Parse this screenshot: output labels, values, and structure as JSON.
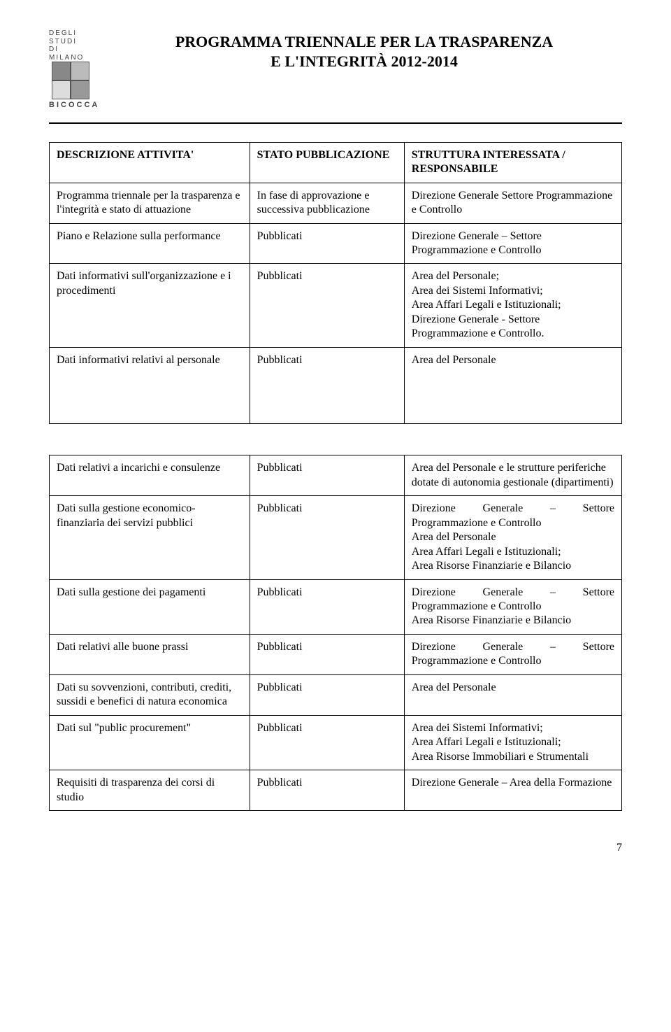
{
  "header": {
    "logo_lines": [
      "DEGLI STUDI",
      "DI MILANO"
    ],
    "logo_brand": "BICOCCA",
    "title_line1": "PROGRAMMA TRIENNALE PER LA TRASPARENZA",
    "title_line2": "E L'INTEGRITÀ 2012-2014"
  },
  "table1": {
    "head": {
      "c1": "DESCRIZIONE ATTIVITA'",
      "c2": "STATO PUBBLICAZIONE",
      "c3": "STRUTTURA INTERESSATA / RESPONSABILE"
    },
    "rows": [
      {
        "c1": "Programma triennale per la trasparenza e l'integrità e stato di attuazione",
        "c2": "In fase di approvazione e successiva pubblicazione",
        "c3": "Direzione Generale Settore Programmazione e Controllo"
      },
      {
        "c1": "Piano e Relazione sulla performance",
        "c2": "Pubblicati",
        "c3": "Direzione Generale – Settore Programmazione e Controllo"
      },
      {
        "c1": "Dati informativi sull'organizzazione e i procedimenti",
        "c2": "Pubblicati",
        "c3": "Area del Personale;\nArea dei Sistemi Informativi;\nArea Affari Legali e Istituzionali;\nDirezione Generale - Settore Programmazione e Controllo."
      },
      {
        "c1": "Dati informativi relativi al personale",
        "c2": "Pubblicati",
        "c3": "Area del Personale"
      }
    ]
  },
  "table2": {
    "rows": [
      {
        "c1": "Dati relativi a incarichi e consulenze",
        "c2": "Pubblicati",
        "c3": "Area del Personale e le strutture periferiche dotate di autonomia gestionale (dipartimenti)"
      },
      {
        "c1": "Dati sulla gestione economico-finanziaria dei servizi pubblici",
        "c2": "Pubblicati",
        "c3": "Direzione Generale – Settore Programmazione e Controllo\nArea del Personale\nArea Affari Legali e Istituzionali;\nArea Risorse Finanziarie e Bilancio",
        "justify": true
      },
      {
        "c1": "Dati sulla gestione dei pagamenti",
        "c2": "Pubblicati",
        "c3": "Direzione Generale – Settore Programmazione e Controllo\nArea Risorse Finanziarie e Bilancio",
        "justify": true
      },
      {
        "c1": "Dati relativi alle buone prassi",
        "c2": "Pubblicati",
        "c3": "Direzione Generale – Settore Programmazione e Controllo",
        "justify": true
      },
      {
        "c1": "Dati su sovvenzioni, contributi, crediti, sussidi e benefici di natura economica",
        "c2": "Pubblicati",
        "c3": "Area del Personale"
      },
      {
        "c1": "Dati sul \"public procurement\"",
        "c2": "Pubblicati",
        "c3": "Area dei Sistemi Informativi;\nArea Affari Legali e Istituzionali;\nArea Risorse Immobiliari e Strumentali"
      },
      {
        "c1": "Requisiti di trasparenza dei corsi di studio",
        "c2": "Pubblicati",
        "c3": "Direzione Generale – Area della Formazione"
      }
    ]
  },
  "page_number": "7"
}
